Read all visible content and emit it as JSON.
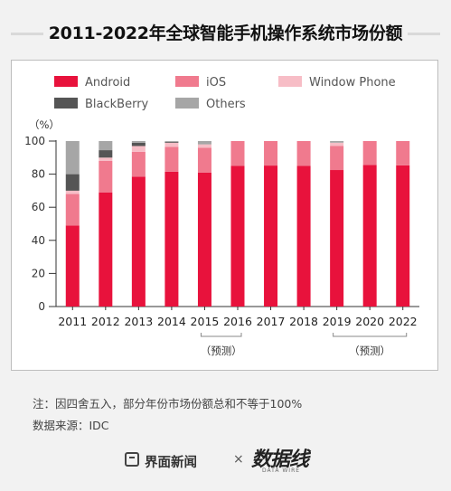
{
  "title": "2011-2022年全球智能手机操作系统市场份额",
  "note": "注：因四舍五入，部分年份市场份额总和不等于100%",
  "source": "数据来源：IDC",
  "footer": {
    "brand_jiemian": "界面新闻",
    "times": "×",
    "brand_shujuxian": "数据线",
    "brand_shujuxian_sub": "DATA WIRE"
  },
  "forecast_label": "（预测）",
  "colors": {
    "Android": "#e8123c",
    "iOS": "#f07a8e",
    "Window Phone": "#f7bdc6",
    "BlackBerry": "#555555",
    "Others": "#a6a6a6"
  },
  "chart_data": {
    "type": "bar",
    "stacked": true,
    "ylabel": "（%）",
    "ylim": [
      0,
      100
    ],
    "yticks": [
      0,
      20,
      40,
      60,
      80,
      100
    ],
    "grid": false,
    "legend_position": "top",
    "categories": [
      "2011",
      "2012",
      "2013",
      "2014",
      "2015",
      "2016",
      "2017",
      "2018",
      "2019",
      "2020",
      "2022"
    ],
    "forecast_groups": [
      [
        "2015",
        "2016"
      ],
      [
        "2019",
        "2020",
        "2022"
      ]
    ],
    "series": [
      {
        "name": "Android",
        "values": [
          49,
          69,
          78.5,
          81.5,
          81,
          85,
          85.2,
          85,
          82.5,
          85.5,
          85.3
        ]
      },
      {
        "name": "iOS",
        "values": [
          19,
          19,
          15,
          15,
          15,
          15,
          14.8,
          15,
          14.5,
          14.5,
          14.7
        ]
      },
      {
        "name": "Window Phone",
        "values": [
          2,
          2,
          3.5,
          2.5,
          2,
          0,
          0,
          0,
          2,
          0,
          0
        ]
      },
      {
        "name": "BlackBerry",
        "values": [
          10,
          4.5,
          2,
          0.5,
          0,
          0,
          0,
          0,
          0,
          0,
          0
        ]
      },
      {
        "name": "Others",
        "values": [
          20,
          5.5,
          1,
          0.5,
          2,
          0,
          0,
          0,
          1,
          0,
          0
        ]
      }
    ]
  }
}
